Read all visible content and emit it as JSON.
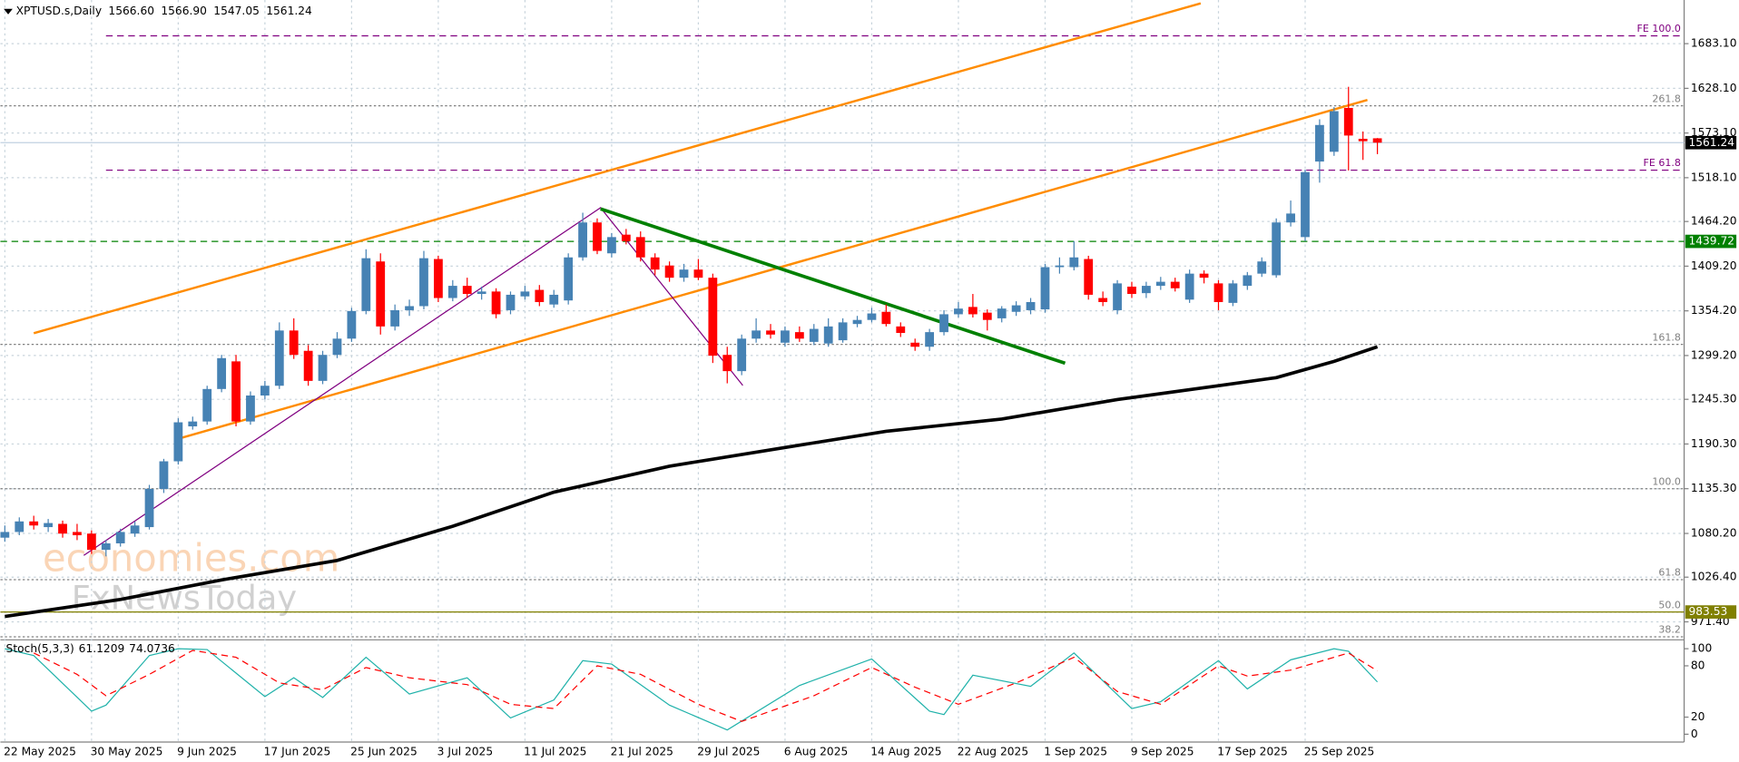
{
  "chart_data": [
    {
      "type": "candlestick",
      "title": "XPTUSD.s,Daily",
      "header_values": [
        "1566.60",
        "1566.90",
        "1547.05",
        "1561.24"
      ],
      "categories": [
        "22 May 2025",
        null,
        null,
        null,
        null,
        null,
        "30 May 2025",
        null,
        null,
        null,
        null,
        null,
        "9 Jun 2025",
        null,
        null,
        null,
        null,
        null,
        "17 Jun 2025",
        null,
        null,
        null,
        null,
        null,
        "25 Jun 2025",
        null,
        null,
        null,
        null,
        null,
        "3 Jul 2025",
        null,
        null,
        null,
        null,
        null,
        "11 Jul 2025",
        null,
        null,
        null,
        null,
        null,
        "21 Jul 2025",
        null,
        null,
        null,
        null,
        null,
        "29 Jul 2025",
        null,
        null,
        null,
        null,
        null,
        "6 Aug 2025",
        null,
        null,
        null,
        null,
        null,
        "14 Aug 2025",
        null,
        null,
        null,
        null,
        null,
        "22 Aug 2025",
        null,
        null,
        null,
        null,
        null,
        "1 Sep 2025",
        null,
        null,
        null,
        null,
        null,
        "9 Sep 2025",
        null,
        null,
        null,
        null,
        null,
        "17 Sep 2025",
        null,
        null,
        null,
        null,
        null,
        "25 Sep 2025",
        null,
        null,
        null,
        null,
        null
      ],
      "open": [
        1075,
        1082,
        1095,
        1088,
        1092,
        1082,
        1080,
        1060,
        1068,
        1080,
        1088,
        1135,
        1169,
        1212,
        1218,
        1258,
        1292,
        1218,
        1250,
        1262,
        1330,
        1305,
        1268,
        1300,
        1320,
        1354,
        1415,
        1335,
        1355,
        1360,
        1418,
        1370,
        1385,
        1375,
        1378,
        1355,
        1372,
        1380,
        1362,
        1367,
        1420,
        1463,
        1425,
        1448,
        1445,
        1420,
        1410,
        1395,
        1405,
        1395,
        1300,
        1280,
        1320,
        1330,
        1315,
        1328,
        1316,
        1314,
        1318,
        1338,
        1343,
        1353,
        1335,
        1315,
        1310,
        1328,
        1350,
        1359,
        1352,
        1345,
        1353,
        1355,
        1356,
        1408,
        1408,
        1418,
        1370,
        1355,
        1384,
        1376,
        1385,
        1390,
        1368,
        1400,
        1388,
        1364,
        1385,
        1400,
        1398,
        1463,
        1445,
        1538,
        1550,
        1604,
        1566,
        1566.6
      ],
      "high": [
        1090,
        1100,
        1102,
        1098,
        1096,
        1092,
        1084,
        1072,
        1086,
        1095,
        1140,
        1172,
        1222,
        1224,
        1262,
        1300,
        1300,
        1255,
        1268,
        1340,
        1345,
        1312,
        1305,
        1328,
        1358,
        1430,
        1425,
        1362,
        1368,
        1428,
        1422,
        1392,
        1395,
        1384,
        1382,
        1378,
        1385,
        1386,
        1380,
        1425,
        1475,
        1468,
        1450,
        1455,
        1452,
        1425,
        1415,
        1412,
        1418,
        1400,
        1310,
        1325,
        1345,
        1338,
        1335,
        1335,
        1338,
        1345,
        1345,
        1348,
        1358,
        1362,
        1340,
        1320,
        1332,
        1355,
        1365,
        1375,
        1356,
        1360,
        1366,
        1370,
        1412,
        1420,
        1440,
        1422,
        1378,
        1392,
        1390,
        1390,
        1396,
        1395,
        1405,
        1404,
        1392,
        1392,
        1402,
        1420,
        1468,
        1490,
        1528,
        1590,
        1605,
        1630,
        1575,
        1566.9
      ],
      "low": [
        1070,
        1078,
        1085,
        1082,
        1075,
        1072,
        1055,
        1052,
        1064,
        1076,
        1085,
        1130,
        1165,
        1208,
        1214,
        1254,
        1212,
        1214,
        1245,
        1258,
        1295,
        1262,
        1264,
        1296,
        1316,
        1350,
        1325,
        1330,
        1348,
        1356,
        1365,
        1366,
        1370,
        1368,
        1345,
        1350,
        1368,
        1360,
        1358,
        1362,
        1416,
        1424,
        1420,
        1436,
        1415,
        1398,
        1390,
        1390,
        1392,
        1290,
        1265,
        1275,
        1315,
        1320,
        1310,
        1316,
        1312,
        1310,
        1315,
        1334,
        1340,
        1335,
        1322,
        1305,
        1305,
        1324,
        1346,
        1346,
        1330,
        1340,
        1348,
        1350,
        1352,
        1400,
        1404,
        1368,
        1360,
        1350,
        1370,
        1370,
        1380,
        1378,
        1364,
        1388,
        1355,
        1360,
        1380,
        1396,
        1395,
        1458,
        1440,
        1512,
        1545,
        1527,
        1540,
        1547.05
      ],
      "close": [
        1082,
        1095,
        1090,
        1093,
        1080,
        1078,
        1060,
        1068,
        1082,
        1090,
        1135,
        1169,
        1217,
        1218,
        1258,
        1296,
        1218,
        1250,
        1262,
        1330,
        1300,
        1268,
        1300,
        1320,
        1354,
        1419,
        1335,
        1355,
        1360,
        1419,
        1370,
        1385,
        1375,
        1378,
        1350,
        1374,
        1378,
        1365,
        1374,
        1420,
        1463,
        1428,
        1445,
        1440,
        1420,
        1405,
        1395,
        1405,
        1395,
        1299,
        1280,
        1320,
        1330,
        1325,
        1330,
        1320,
        1332,
        1335,
        1340,
        1343,
        1351,
        1338,
        1327,
        1310,
        1328,
        1350,
        1357,
        1350,
        1343,
        1357,
        1361,
        1365,
        1408,
        1410,
        1420,
        1374,
        1365,
        1388,
        1375,
        1385,
        1390,
        1382,
        1400,
        1395,
        1365,
        1388,
        1398,
        1415,
        1463,
        1474,
        1525,
        1583,
        1600,
        1570,
        1563,
        1561.24
      ],
      "up_color": "#4682b4",
      "down_color": "#ff0000",
      "ylim": [
        952,
        1730
      ],
      "yticks": [
        {
          "value": 1683.1,
          "label": "1683.10"
        },
        {
          "value": 1628.1,
          "label": "1628.10"
        },
        {
          "value": 1573.1,
          "label": "1573.10"
        },
        {
          "value": 1518.1,
          "label": "1518.10"
        },
        {
          "value": 1464.2,
          "label": "1464.20"
        },
        {
          "value": 1409.2,
          "label": "1409.20"
        },
        {
          "value": 1354.2,
          "label": "1354.20"
        },
        {
          "value": 1299.2,
          "label": "1299.20"
        },
        {
          "value": 1245.3,
          "label": "1245.30"
        },
        {
          "value": 1190.3,
          "label": "1190.30"
        },
        {
          "value": 1135.3,
          "label": "1135.30"
        },
        {
          "value": 1080.2,
          "label": "1080.20"
        },
        {
          "value": 1026.4,
          "label": "1026.40"
        },
        {
          "value": 971.4,
          "label": "971.40"
        }
      ],
      "grid": true,
      "moving_average": {
        "color": "#000000",
        "x": [
          0,
          8,
          15,
          23,
          31,
          38,
          46,
          54,
          61,
          69,
          77,
          84,
          88,
          92,
          95
        ],
        "values": [
          978,
          999,
          1023,
          1047,
          1089,
          1131,
          1163,
          1186,
          1206,
          1221,
          1245,
          1262,
          1272,
          1292,
          1310
        ]
      },
      "levels": [
        {
          "label": "FE 100.0",
          "value": 1692.7,
          "color": "#800080",
          "style": "dashed"
        },
        {
          "label": "261.8",
          "value": 1606.6,
          "color": "#808080",
          "style": "dotted"
        },
        {
          "label": "FE 61.8",
          "value": 1527.4,
          "color": "#800080",
          "style": "dashed"
        },
        {
          "label": "161.8",
          "value": 1312.9,
          "color": "#808080",
          "style": "dotted"
        },
        {
          "label": "100.0",
          "value": 1135.3,
          "color": "#808080",
          "style": "dotted"
        },
        {
          "label": "61.8",
          "value": 1023.3,
          "color": "#808080",
          "style": "dotted"
        },
        {
          "label": "50.0",
          "value": 983.53,
          "color": "#808080",
          "style": "dotted"
        },
        {
          "label": "38.2",
          "value": 953,
          "color": "#808080",
          "style": "dotted"
        }
      ],
      "price_tags": [
        {
          "value": 1561.24,
          "color": "#000000",
          "line_color": "#c0d0e0",
          "style": "solid"
        },
        {
          "value": 1439.72,
          "color": "#008000",
          "line_color": "#008000",
          "style": "dashed"
        },
        {
          "value": 983.53,
          "color": "#808000",
          "line_color": "#808000",
          "style": "solid"
        }
      ],
      "watermark": [
        "economies.com",
        "FxNewsToday"
      ]
    },
    {
      "type": "line",
      "title": "Stoch(5,3,3)",
      "ylim": [
        -6.5,
        107.8
      ],
      "yticks": [
        0,
        20,
        80,
        100
      ],
      "series": [
        {
          "color": "#20b2aa",
          "style": "solid",
          "x": [
            0,
            2,
            6,
            7,
            10,
            12,
            14,
            18,
            20,
            22,
            25,
            28,
            32,
            35,
            38,
            40,
            42,
            46,
            50,
            55,
            60,
            64,
            65,
            67,
            71,
            74,
            78,
            80,
            84,
            86,
            89,
            92,
            93,
            95
          ],
          "values": [
            100,
            92,
            27,
            34,
            92,
            100,
            99,
            44,
            66,
            43,
            90,
            47,
            66,
            19,
            40,
            86,
            82,
            34,
            5,
            57,
            88,
            27,
            23,
            69,
            56,
            95,
            30,
            38,
            86,
            53,
            87,
            100,
            97,
            61.1209
          ]
        },
        {
          "color": "#ff0000",
          "style": "dashed",
          "x": [
            2,
            5,
            7,
            10,
            13,
            16,
            19,
            22,
            25,
            28,
            32,
            35,
            38,
            41,
            44,
            48,
            51,
            56,
            60,
            63,
            66,
            70,
            74,
            77,
            80,
            84,
            86,
            89,
            93,
            95
          ],
          "values": [
            95,
            70,
            45,
            70,
            98,
            90,
            60,
            52,
            78,
            66,
            58,
            35,
            30,
            80,
            70,
            35,
            15,
            45,
            78,
            55,
            35,
            60,
            90,
            50,
            35,
            80,
            68,
            75,
            95,
            74.0736
          ]
        }
      ]
    }
  ]
}
